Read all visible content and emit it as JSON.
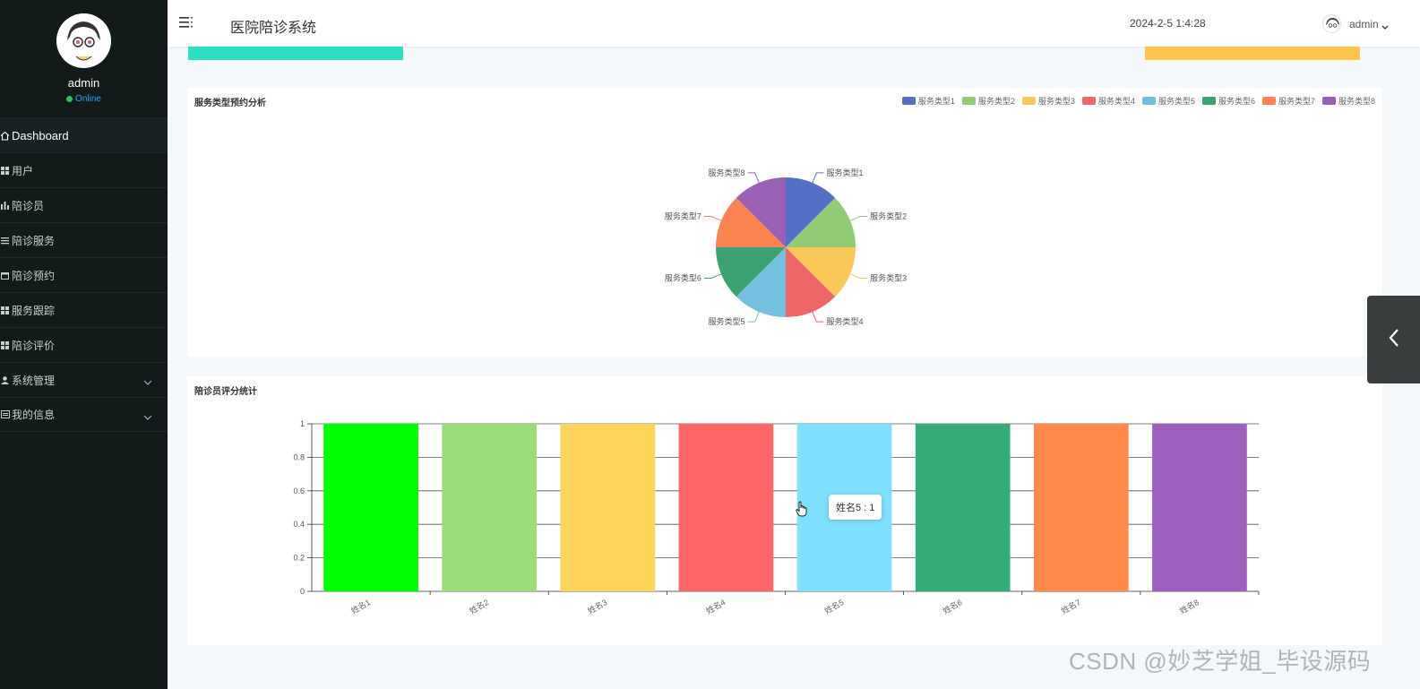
{
  "sidebar": {
    "profile": {
      "name": "admin",
      "status": "Online"
    },
    "items": [
      {
        "label": "Dashboard",
        "icon": "home-icon",
        "active": true
      },
      {
        "label": "用户",
        "icon": "grid-icon"
      },
      {
        "label": "陪诊员",
        "icon": "chart-icon"
      },
      {
        "label": "陪诊服务",
        "icon": "list-icon"
      },
      {
        "label": "陪诊预约",
        "icon": "calendar-icon"
      },
      {
        "label": "服务跟踪",
        "icon": "grid-icon"
      },
      {
        "label": "陪诊评价",
        "icon": "grid-icon"
      },
      {
        "label": "系统管理",
        "icon": "user-icon",
        "expandable": true
      },
      {
        "label": "我的信息",
        "icon": "card-icon",
        "expandable": true
      }
    ]
  },
  "header": {
    "title": "医院陪诊系统",
    "datetime": "2024-2-5 1:4:28",
    "user": "admin"
  },
  "pie_card": {
    "title": "服务类型预约分析",
    "chart_data": {
      "type": "pie",
      "categories": [
        "服务类型1",
        "服务类型2",
        "服务类型3",
        "服务类型4",
        "服务类型5",
        "服务类型6",
        "服务类型7",
        "服务类型8"
      ],
      "values": [
        1,
        1,
        1,
        1,
        1,
        1,
        1,
        1
      ],
      "colors": [
        "#5470c6",
        "#91cc75",
        "#fac858",
        "#ee6666",
        "#73c0de",
        "#3ba272",
        "#fc8452",
        "#9a60b4"
      ],
      "legend": "top-right"
    }
  },
  "bar_card": {
    "title": "陪诊员评分统计",
    "chart_data": {
      "type": "bar",
      "categories": [
        "姓名1",
        "姓名2",
        "姓名3",
        "姓名4",
        "姓名5",
        "姓名6",
        "姓名7",
        "姓名8"
      ],
      "values": [
        1,
        1,
        1,
        1,
        1,
        1,
        1,
        1
      ],
      "colors": [
        "#00ff00",
        "#9adb7a",
        "#ffd45a",
        "#ff6666",
        "#7fdfff",
        "#36ab75",
        "#ff8a4c",
        "#9e5fbf"
      ],
      "ylim": [
        0,
        1
      ],
      "yticks": [
        "0",
        "0.2",
        "0.4",
        "0.6",
        "0.8",
        "1"
      ],
      "grid": true
    }
  },
  "tooltip": {
    "text": "姓名5 : 1"
  },
  "watermark": "CSDN @妙芝学姐_毕设源码"
}
